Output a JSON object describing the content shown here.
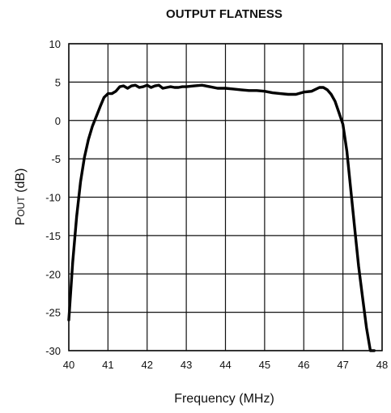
{
  "chart_data": {
    "type": "line",
    "title": "OUTPUT FLATNESS",
    "xlabel": "Frequency  (MHz)",
    "ylabel": "POUT (dB)",
    "ylabel_parts": {
      "main": "P",
      "sub": "OUT",
      "unit": " (dB)"
    },
    "xlim": [
      40,
      48
    ],
    "ylim": [
      -30,
      10
    ],
    "xticks": [
      "40",
      "41",
      "42",
      "43",
      "44",
      "45",
      "46",
      "47",
      "48"
    ],
    "yticks": [
      "10",
      "5",
      "0",
      "-5",
      "-10",
      "-15",
      "-20",
      "-25",
      "-30"
    ],
    "grid": true,
    "series": [
      {
        "x": [
          40.0,
          40.1,
          40.2,
          40.3,
          40.4,
          40.5,
          40.6,
          40.7,
          40.8,
          40.9,
          41.0,
          41.1,
          41.2,
          41.3,
          41.4,
          41.5,
          41.6,
          41.7,
          41.8,
          41.9,
          42.0,
          42.1,
          42.2,
          42.3,
          42.4,
          42.5,
          42.6,
          42.7,
          42.8,
          42.9,
          43.0,
          43.2,
          43.4,
          43.6,
          43.8,
          44.0,
          44.2,
          44.4,
          44.6,
          44.8,
          45.0,
          45.2,
          45.4,
          45.6,
          45.8,
          46.0,
          46.2,
          46.4,
          46.5,
          46.6,
          46.7,
          46.8,
          46.9,
          47.0,
          47.1,
          47.2,
          47.3,
          47.4,
          47.5,
          47.6,
          47.7,
          47.8
        ],
        "y": [
          -26.0,
          -18.5,
          -12.5,
          -8.0,
          -4.8,
          -2.5,
          -0.8,
          0.5,
          1.8,
          3.0,
          3.5,
          3.5,
          3.8,
          4.4,
          4.5,
          4.2,
          4.5,
          4.6,
          4.3,
          4.4,
          4.6,
          4.3,
          4.5,
          4.6,
          4.2,
          4.3,
          4.4,
          4.3,
          4.3,
          4.4,
          4.4,
          4.5,
          4.6,
          4.4,
          4.2,
          4.2,
          4.1,
          4.0,
          3.9,
          3.9,
          3.8,
          3.6,
          3.5,
          3.4,
          3.4,
          3.7,
          3.8,
          4.3,
          4.3,
          4.0,
          3.4,
          2.5,
          1.0,
          -0.5,
          -4.0,
          -9.0,
          -14.0,
          -19.0,
          -23.0,
          -27.0,
          -30.0,
          -30.0
        ]
      }
    ]
  }
}
